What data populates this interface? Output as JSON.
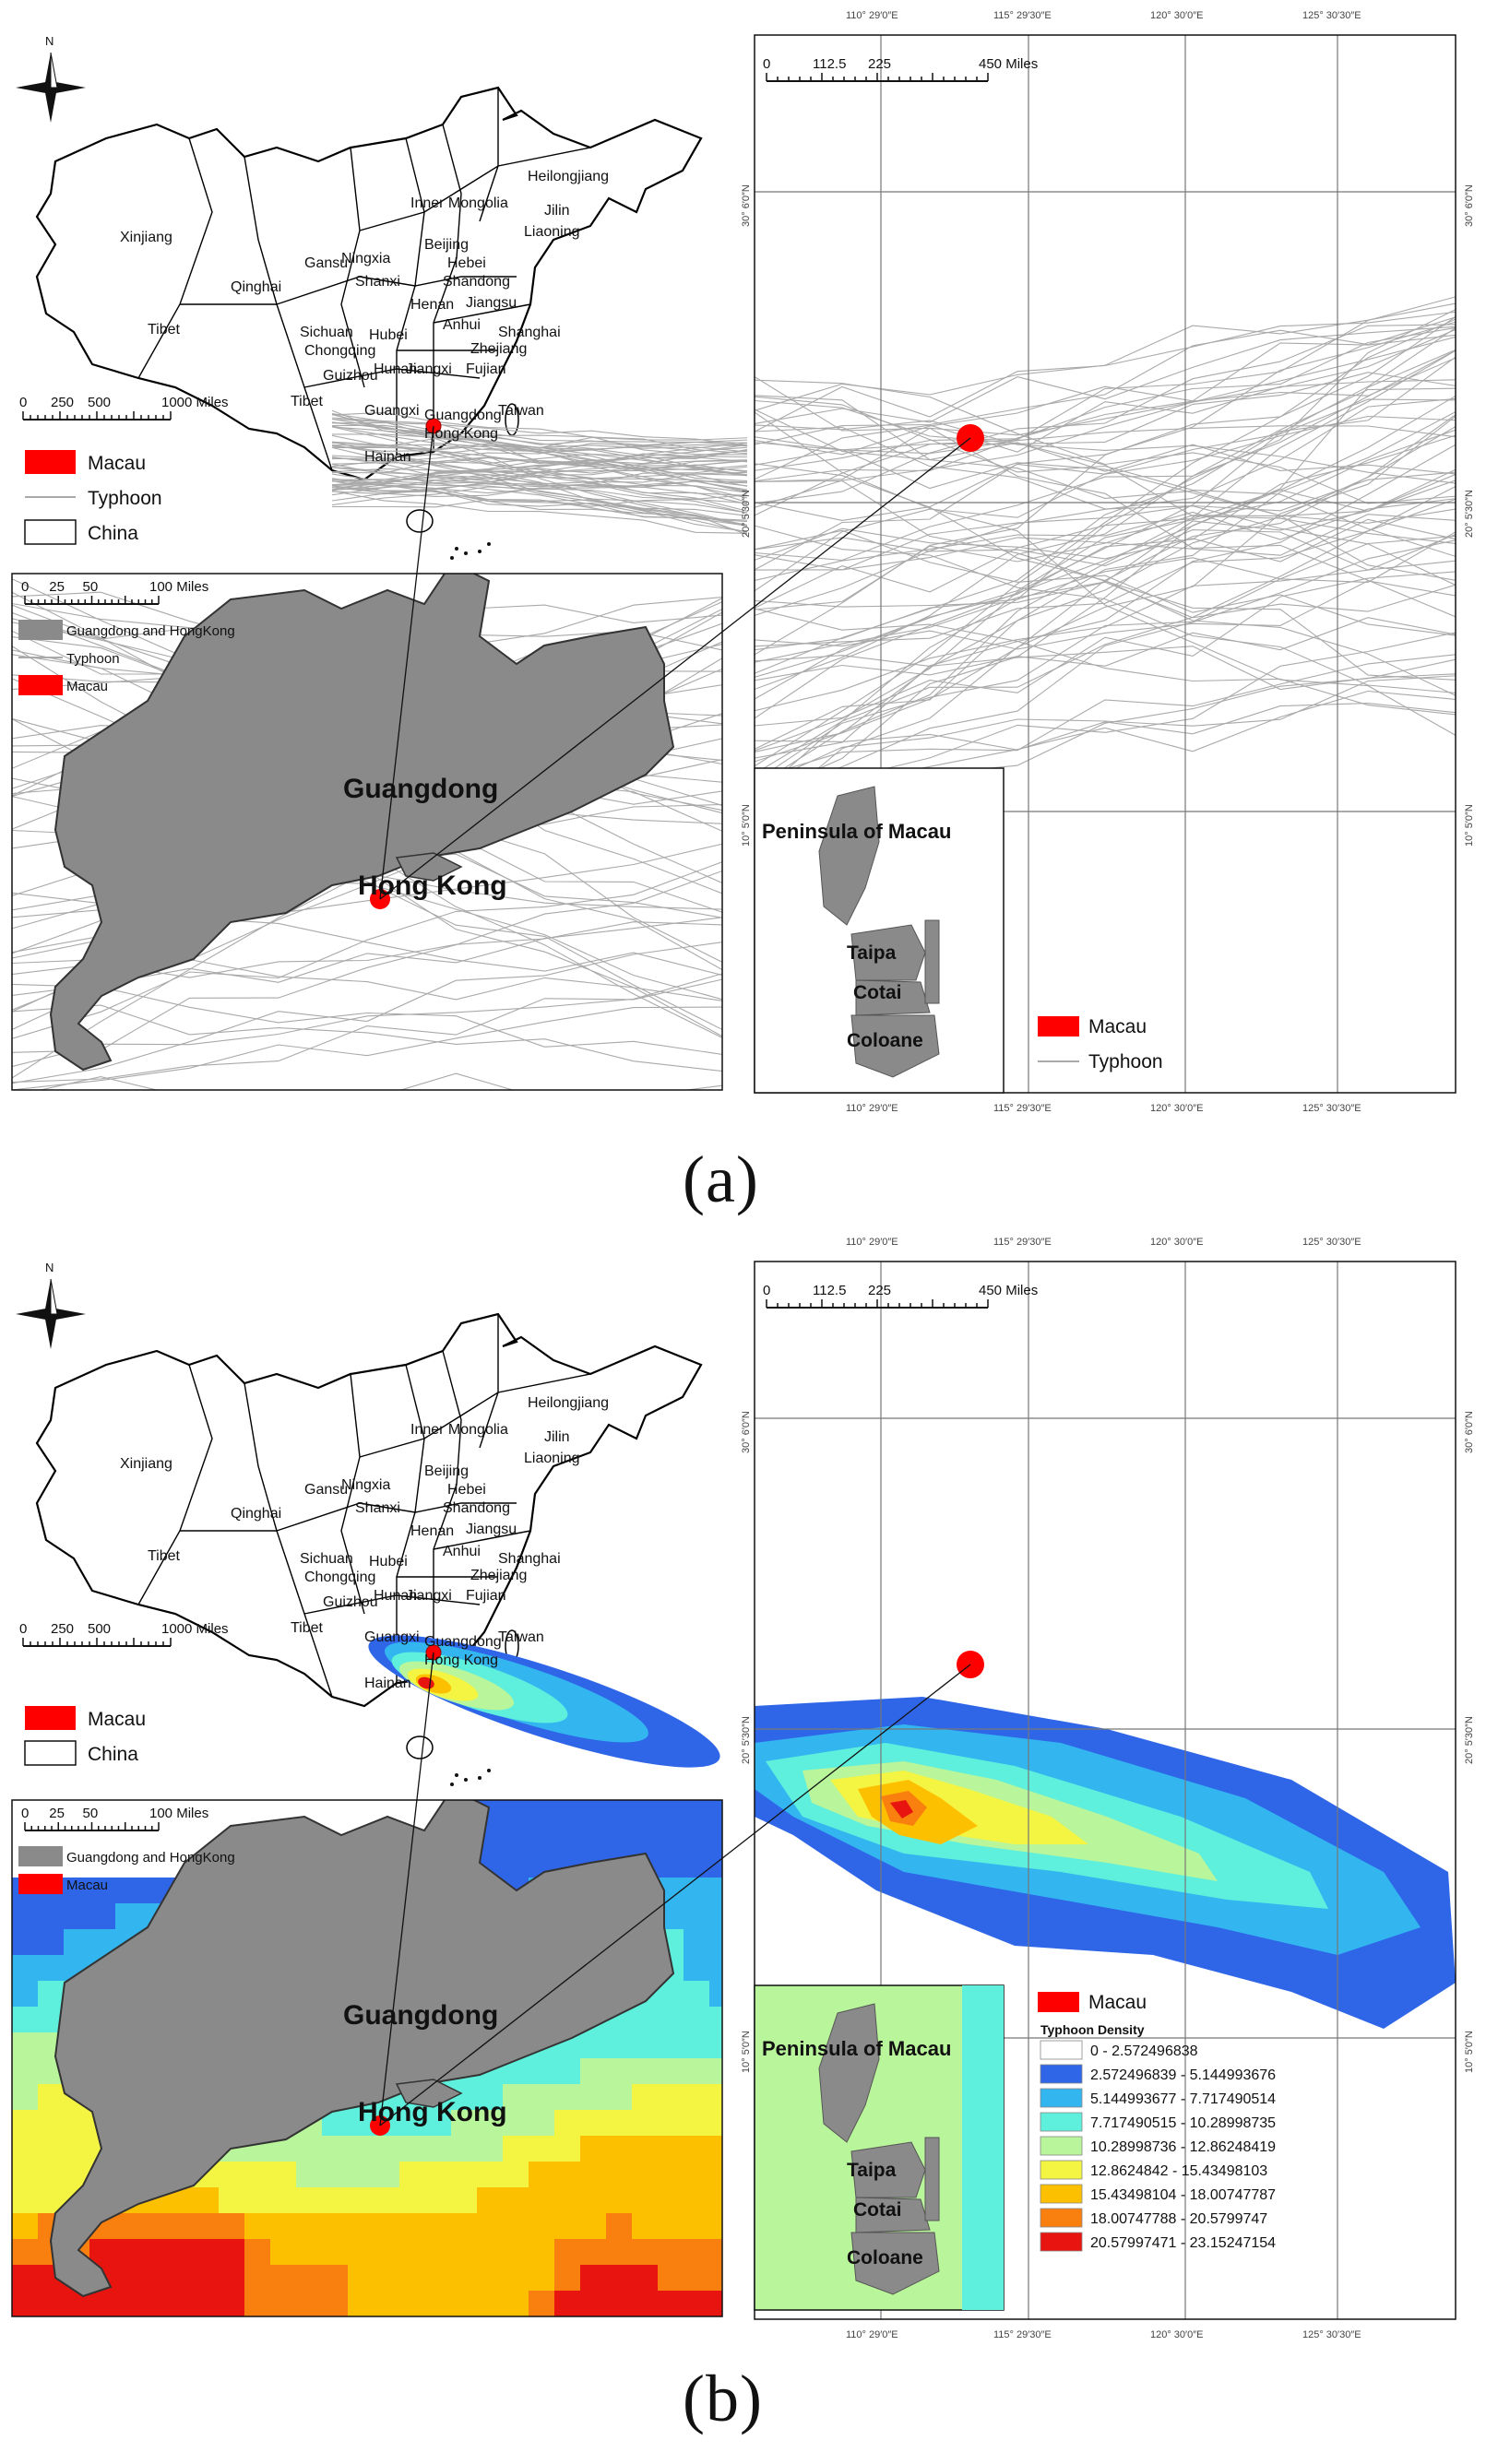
{
  "figure": {
    "panels": [
      {
        "label": "(a)",
        "china_map": {
          "regions": [
            "Xinjiang",
            "Tibet",
            "Qinghai",
            "Inner Mongolia",
            "Heilongjiang",
            "Jilin",
            "Liaoning",
            "Beijing",
            "Hebei",
            "Ningxia",
            "Gansu",
            "Shanxi",
            "Shandong",
            "Henan",
            "Jiangsu",
            "Anhui",
            "Shanghai",
            "Sichuan",
            "Chongqing",
            "Hubei",
            "Zhejiang",
            "Guizhou",
            "Hunan",
            "Jiangxi",
            "Fujian",
            "Tibet",
            "Guangxi",
            "Guangdong",
            "Taiwan",
            "Hong Kong",
            "Hainan"
          ],
          "scale": {
            "ticks": [
              "0",
              "250",
              "500",
              "1000 Miles"
            ]
          },
          "legend": [
            {
              "label": "Macau",
              "symbol": "red-box"
            },
            {
              "label": "Typhoon",
              "symbol": "line"
            },
            {
              "label": "China",
              "symbol": "white-box"
            }
          ]
        },
        "guangdong_map": {
          "scale": {
            "ticks": [
              "0",
              "25",
              "50",
              "100 Miles"
            ]
          },
          "legend": [
            {
              "label": "Guangdong and HongKong",
              "symbol": "grey-box"
            },
            {
              "label": "Typhoon",
              "symbol": "line"
            },
            {
              "label": "Macau",
              "symbol": "red-box"
            }
          ],
          "labels": {
            "region": "Guangdong",
            "city": "Hong Kong"
          }
        },
        "regional_map": {
          "scale": {
            "ticks": [
              "0",
              "112.5",
              "225",
              "450 Miles"
            ]
          },
          "lon_ticks": [
            "110° 29′0″E",
            "115° 29′30″E",
            "120° 30′0″E",
            "125° 30′30″E"
          ],
          "lat_ticks": [
            "30° 6′0″N",
            "20° 5′30″N",
            "10° 5′0″N"
          ],
          "legend": [
            {
              "label": "Macau",
              "symbol": "red-box"
            },
            {
              "label": "Typhoon",
              "symbol": "line"
            }
          ],
          "inset": {
            "title": "Peninsula of Macau",
            "labels": [
              "Taipa",
              "Cotai",
              "Coloane"
            ]
          }
        }
      },
      {
        "label": "(b)",
        "china_map": {
          "regions": [
            "Xinjiang",
            "Tibet",
            "Qinghai",
            "Inner Mongolia",
            "Heilongjiang",
            "Jilin",
            "Liaoning",
            "Beijing",
            "Hebei",
            "Ningxia",
            "Gansu",
            "Shanxi",
            "Shandong",
            "Henan",
            "Jiangsu",
            "Anhui",
            "Shanghai",
            "Sichuan",
            "Chongqing",
            "Hubei",
            "Zhejiang",
            "Guizhou",
            "Hunan",
            "Jiangxi",
            "Fujian",
            "Tibet",
            "Guangxi",
            "Guangdong",
            "Taiwan",
            "Hong Kong",
            "Hainan"
          ],
          "scale": {
            "ticks": [
              "0",
              "250",
              "500",
              "1000 Miles"
            ]
          },
          "legend": [
            {
              "label": "Macau",
              "symbol": "red-box"
            },
            {
              "label": "China",
              "symbol": "white-box"
            }
          ]
        },
        "guangdong_map": {
          "scale": {
            "ticks": [
              "0",
              "25",
              "50",
              "100 Miles"
            ]
          },
          "legend": [
            {
              "label": "Guangdong and HongKong",
              "symbol": "grey-box"
            },
            {
              "label": "Macau",
              "symbol": "red-box"
            }
          ],
          "labels": {
            "region": "Guangdong",
            "city": "Hong Kong"
          }
        },
        "regional_map": {
          "scale": {
            "ticks": [
              "0",
              "112.5",
              "225",
              "450 Miles"
            ]
          },
          "lon_ticks": [
            "110° 29′0″E",
            "115° 29′30″E",
            "120° 30′0″E",
            "125° 30′30″E"
          ],
          "lat_ticks": [
            "30° 6′0″N",
            "20° 5′30″N",
            "10° 5′0″N"
          ],
          "legend_macau": "Macau",
          "density_title": "Typhoon Density",
          "density_classes": [
            {
              "range": "0 - 2.572496838",
              "color": "#ffffff"
            },
            {
              "range": "2.572496839 - 5.144993676",
              "color": "#2f66e8"
            },
            {
              "range": "5.144993677 - 7.717490514",
              "color": "#33b6f0"
            },
            {
              "range": "7.717490515 - 10.28998735",
              "color": "#5ef0dc"
            },
            {
              "range": "10.28998736 - 12.86248419",
              "color": "#b9f59a"
            },
            {
              "range": "12.8624842 - 15.43498103",
              "color": "#f4f542"
            },
            {
              "range": "15.43498104 - 18.00747787",
              "color": "#fdc000"
            },
            {
              "range": "18.00747788 - 20.5799747",
              "color": "#f97f0e"
            },
            {
              "range": "20.57997471 - 23.15247154",
              "color": "#e81410"
            }
          ],
          "inset": {
            "title": "Peninsula of Macau",
            "labels": [
              "Taipa",
              "Cotai",
              "Coloane"
            ]
          }
        }
      }
    ],
    "colors": {
      "macau": "#ff0000",
      "land": "#8a8a8a",
      "track": "#a9a9a9",
      "outline": "#000000"
    }
  }
}
